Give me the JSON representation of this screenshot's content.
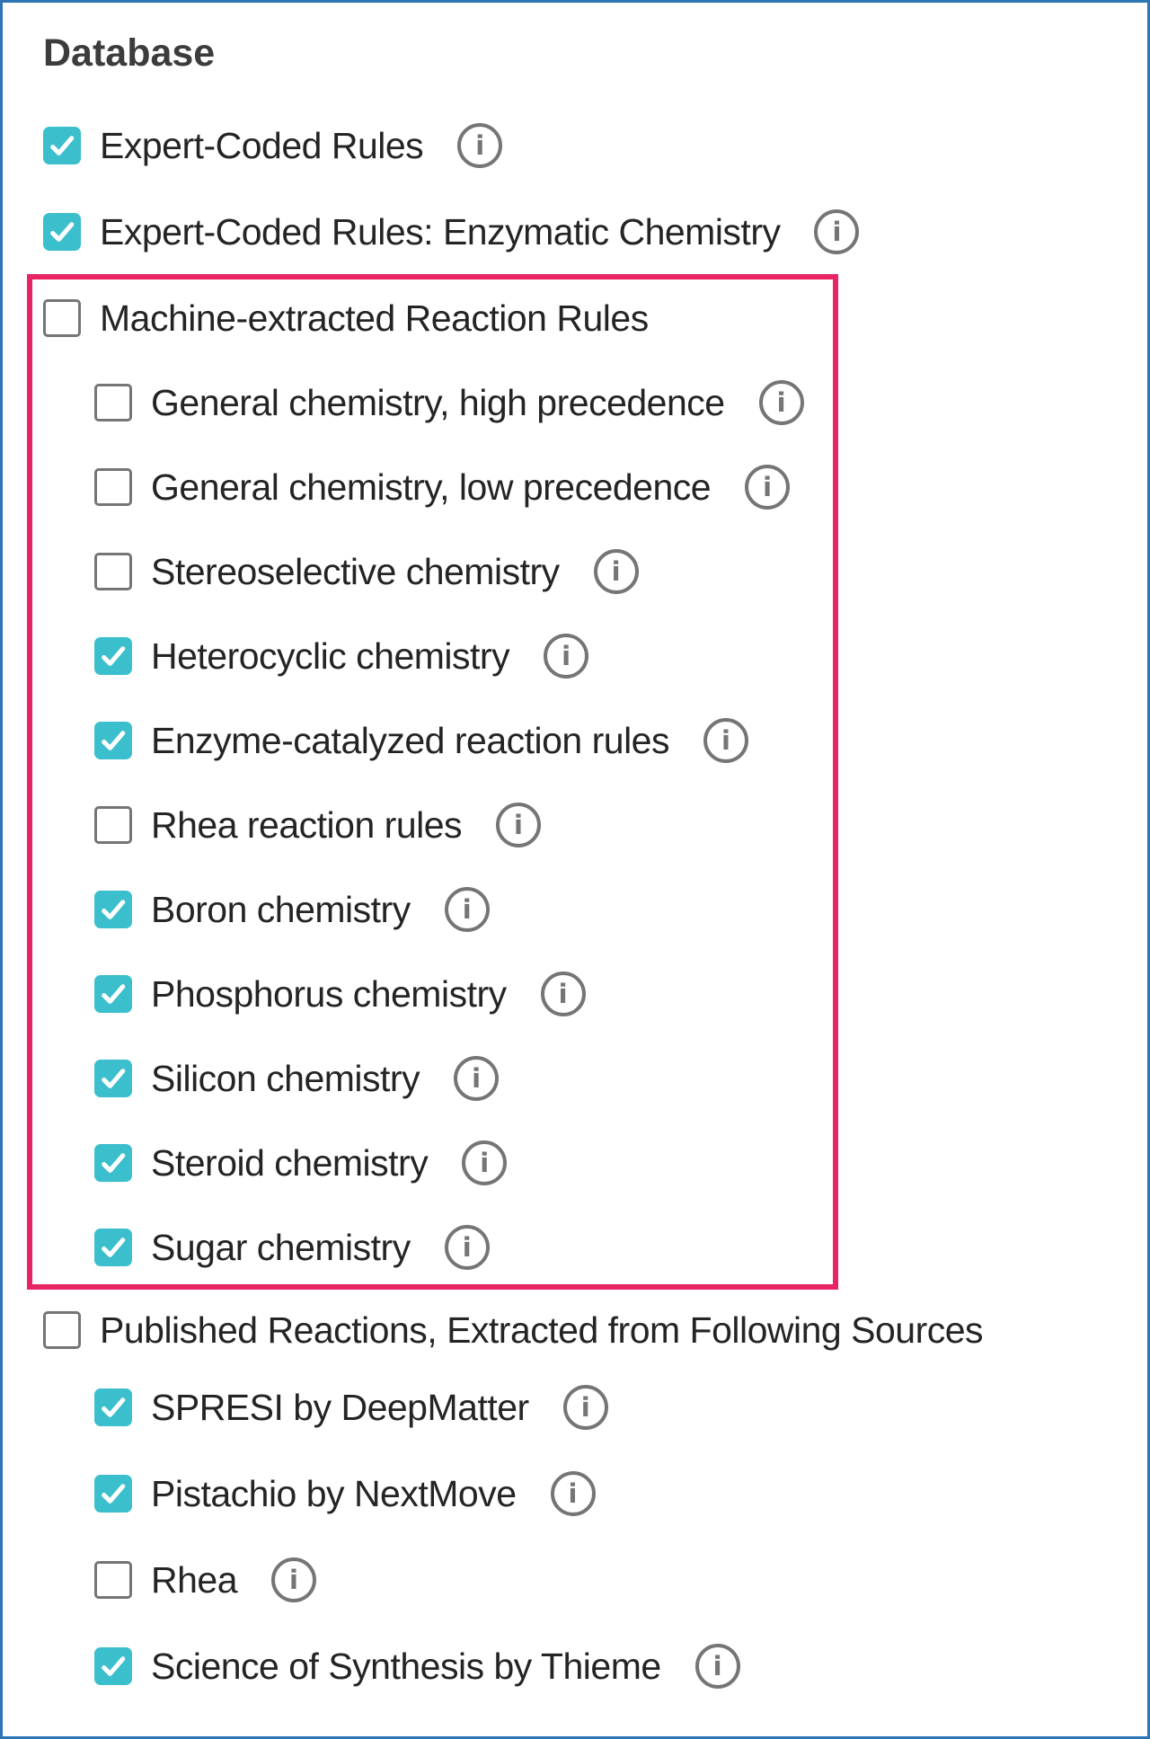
{
  "colors": {
    "checkbox_checked": "#3BBFCD",
    "checkbox_unchecked_border": "#757575",
    "info_icon": "#757575",
    "highlight_border": "#E72563",
    "page_border": "#2E75B6",
    "title_text": "#3C3C3C",
    "label_text": "#242424"
  },
  "icons": {
    "info_glyph": "i",
    "checkmark": "check"
  },
  "section": {
    "title": "Database",
    "top_rows": [
      {
        "id": "expert-coded-rules",
        "label": "Expert-Coded Rules",
        "checked": true,
        "indent": 0,
        "info": true
      },
      {
        "id": "expert-coded-rules-enzymatic-chemistry",
        "label": "Expert-Coded Rules: Enzymatic Chemistry",
        "checked": true,
        "indent": 0,
        "info": true
      }
    ],
    "highlighted_group": {
      "rows": [
        {
          "id": "machine-extracted-reaction-rules",
          "label": "Machine-extracted Reaction Rules",
          "checked": false,
          "indent": 0,
          "info": false
        },
        {
          "id": "general-chemistry-high-precedence",
          "label": "General chemistry, high precedence",
          "checked": false,
          "indent": 1,
          "info": true
        },
        {
          "id": "general-chemistry-low-precedence",
          "label": "General chemistry, low precedence",
          "checked": false,
          "indent": 1,
          "info": true
        },
        {
          "id": "stereoselective-chemistry",
          "label": "Stereoselective chemistry",
          "checked": false,
          "indent": 1,
          "info": true
        },
        {
          "id": "heterocyclic-chemistry",
          "label": "Heterocyclic chemistry",
          "checked": true,
          "indent": 1,
          "info": true
        },
        {
          "id": "enzyme-catalyzed-reaction-rules",
          "label": "Enzyme-catalyzed reaction rules",
          "checked": true,
          "indent": 1,
          "info": true
        },
        {
          "id": "rhea-reaction-rules",
          "label": "Rhea reaction rules",
          "checked": false,
          "indent": 1,
          "info": true
        },
        {
          "id": "boron-chemistry",
          "label": "Boron chemistry",
          "checked": true,
          "indent": 1,
          "info": true
        },
        {
          "id": "phosphorus-chemistry",
          "label": "Phosphorus chemistry",
          "checked": true,
          "indent": 1,
          "info": true
        },
        {
          "id": "silicon-chemistry",
          "label": "Silicon chemistry",
          "checked": true,
          "indent": 1,
          "info": true
        },
        {
          "id": "steroid-chemistry",
          "label": "Steroid chemistry",
          "checked": true,
          "indent": 1,
          "info": true
        },
        {
          "id": "sugar-chemistry",
          "label": "Sugar chemistry",
          "checked": true,
          "indent": 1,
          "info": true
        }
      ]
    },
    "published_group": {
      "rows": [
        {
          "id": "published-reactions",
          "label": "Published Reactions, Extracted from Following Sources",
          "checked": false,
          "indent": 0,
          "info": false
        },
        {
          "id": "spresi-by-deepmatter",
          "label": "SPRESI by DeepMatter",
          "checked": true,
          "indent": 1,
          "info": true
        },
        {
          "id": "pistachio-by-nextmove",
          "label": "Pistachio by NextMove",
          "checked": true,
          "indent": 1,
          "info": true
        },
        {
          "id": "rhea",
          "label": "Rhea",
          "checked": false,
          "indent": 1,
          "info": true
        },
        {
          "id": "science-of-synthesis-by-thieme",
          "label": "Science of Synthesis by Thieme",
          "checked": true,
          "indent": 1,
          "info": true
        }
      ]
    }
  }
}
